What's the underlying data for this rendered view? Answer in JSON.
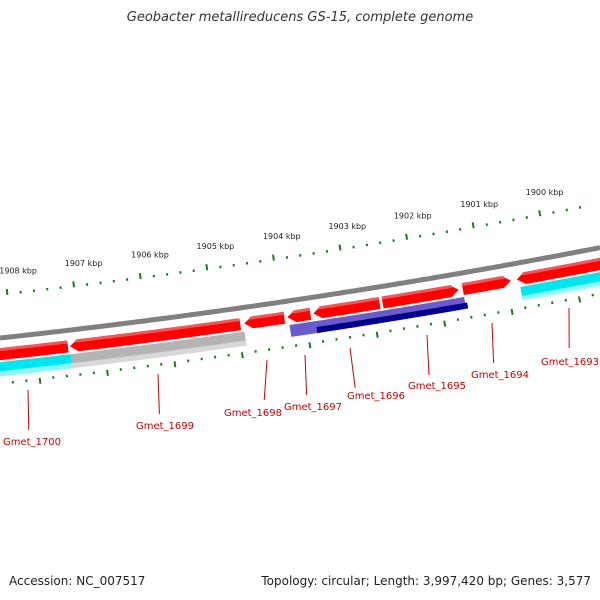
{
  "title": "Geobacter metallireducens GS-15, complete genome",
  "footer": {
    "accession": "Accession: NC_007517",
    "summary": "Topology: circular; Length: 3,997,420 bp; Genes: 3,577"
  },
  "scale_labels": [
    {
      "kbp": 1908,
      "label": "1908 kbp"
    },
    {
      "kbp": 1907,
      "label": "1907 kbp"
    },
    {
      "kbp": 1906,
      "label": "1906 kbp"
    },
    {
      "kbp": 1905,
      "label": "1905 kbp"
    },
    {
      "kbp": 1904,
      "label": "1904 kbp"
    },
    {
      "kbp": 1903,
      "label": "1903 kbp"
    },
    {
      "kbp": 1902,
      "label": "1902 kbp"
    },
    {
      "kbp": 1901,
      "label": "1901 kbp"
    },
    {
      "kbp": 1900,
      "label": "1900 kbp"
    }
  ],
  "genes": [
    {
      "label": "Gmet_1700"
    },
    {
      "label": "Gmet_1699"
    },
    {
      "label": "Gmet_1698"
    },
    {
      "label": "Gmet_1697"
    },
    {
      "label": "Gmet_1696"
    },
    {
      "label": "Gmet_1695"
    },
    {
      "label": "Gmet_1694"
    },
    {
      "label": "Gmet_1693"
    }
  ],
  "colors": {
    "backbone": "#808080",
    "cds": "#ff0000",
    "cds_light": "#ff6666",
    "ticks": "#1e7a1e",
    "gene_label": "#cc0000",
    "cyan": "#00e5ee",
    "cyan_light": "#9ff6fa",
    "grey": "#b4b4b4",
    "grey_light": "#dcdcdc",
    "blue_light": "#6a5acd",
    "blue_dark": "#00008b"
  }
}
